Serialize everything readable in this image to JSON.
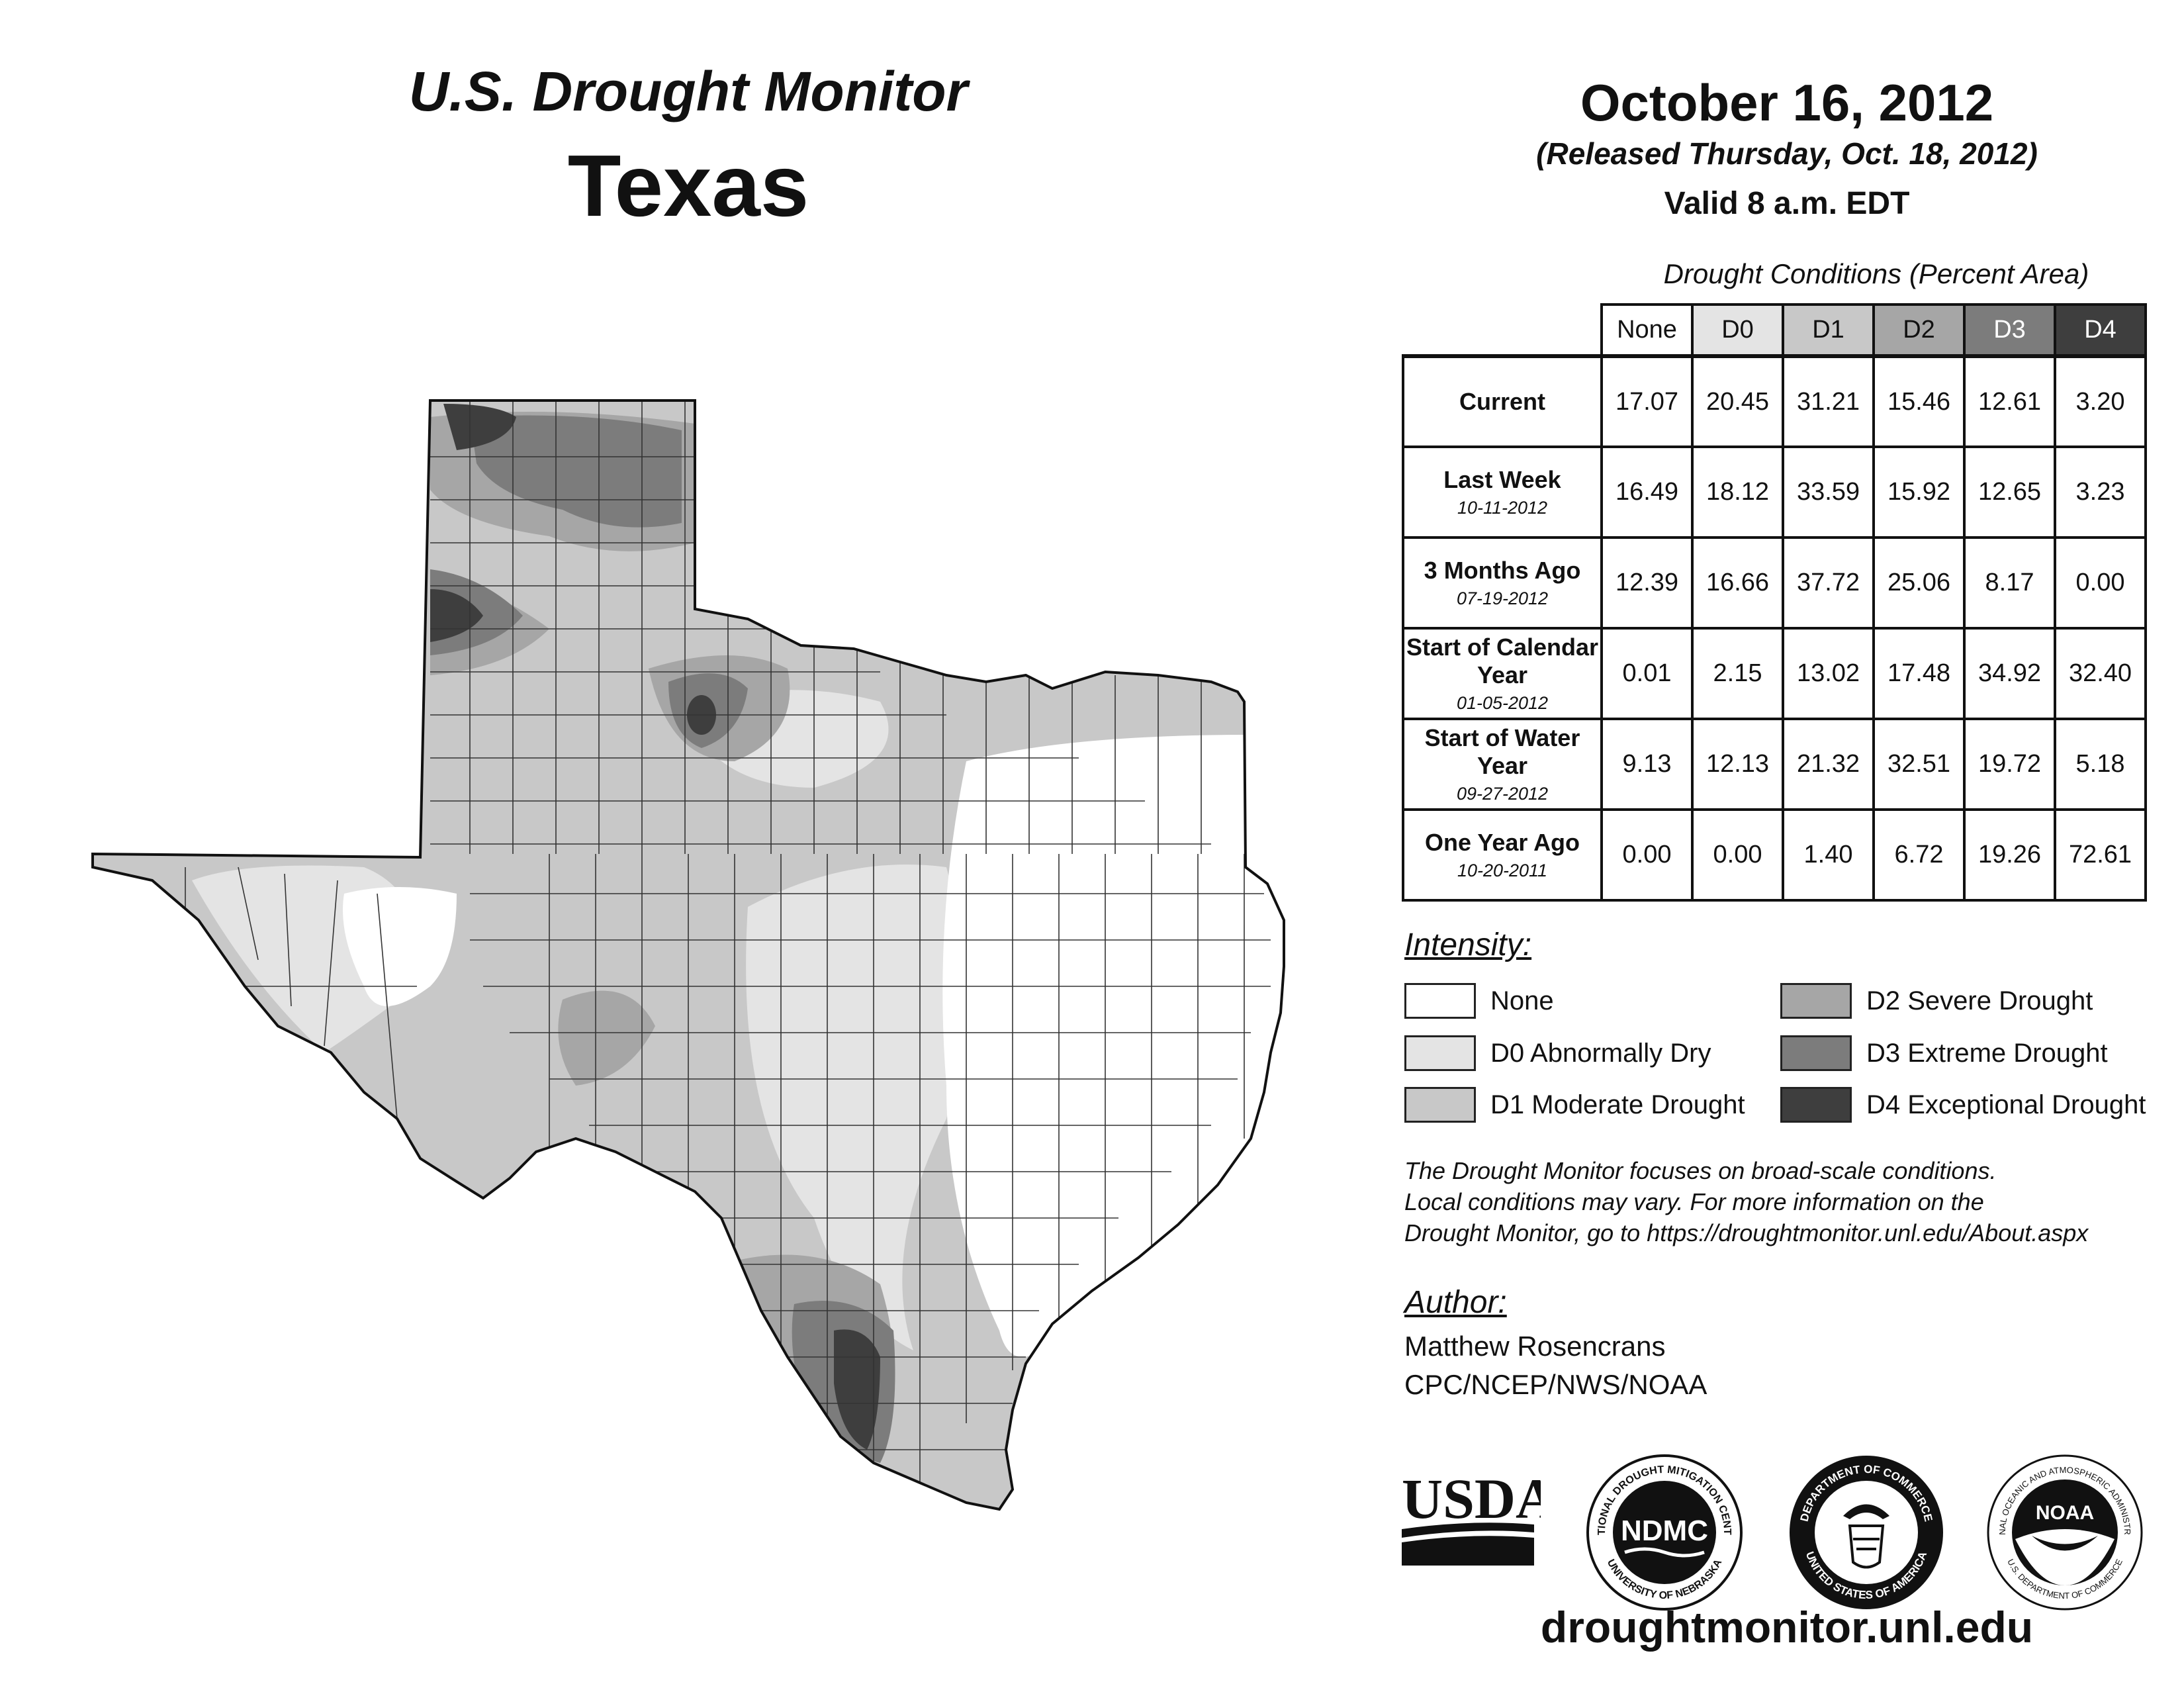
{
  "header": {
    "monitor_title": "U.S. Drought Monitor",
    "state": "Texas",
    "date": "October 16, 2012",
    "released": "(Released Thursday, Oct. 18, 2012)",
    "valid": "Valid 8 a.m. EDT"
  },
  "table": {
    "caption": "Drought Conditions (Percent Area)",
    "columns": [
      "None",
      "D0",
      "D1",
      "D2",
      "D3",
      "D4"
    ],
    "rows": [
      {
        "label": "Current",
        "sub": "",
        "values": [
          "17.07",
          "20.45",
          "31.21",
          "15.46",
          "12.61",
          "3.20"
        ]
      },
      {
        "label": "Last Week",
        "sub": "10-11-2012",
        "values": [
          "16.49",
          "18.12",
          "33.59",
          "15.92",
          "12.65",
          "3.23"
        ]
      },
      {
        "label": "3 Months Ago",
        "sub": "07-19-2012",
        "values": [
          "12.39",
          "16.66",
          "37.72",
          "25.06",
          "8.17",
          "0.00"
        ]
      },
      {
        "label": "Start of Calendar Year",
        "sub": "01-05-2012",
        "values": [
          "0.01",
          "2.15",
          "13.02",
          "17.48",
          "34.92",
          "32.40"
        ]
      },
      {
        "label": "Start of Water Year",
        "sub": "09-27-2012",
        "values": [
          "9.13",
          "12.13",
          "21.32",
          "32.51",
          "19.72",
          "5.18"
        ]
      },
      {
        "label": "One Year Ago",
        "sub": "10-20-2011",
        "values": [
          "0.00",
          "0.00",
          "1.40",
          "6.72",
          "19.26",
          "72.61"
        ]
      }
    ]
  },
  "legend": {
    "heading": "Intensity:",
    "items": [
      {
        "label": "None",
        "color": "#ffffff"
      },
      {
        "label": "D0 Abnormally Dry",
        "color": "#e4e4e4"
      },
      {
        "label": "D1 Moderate Drought",
        "color": "#c8c8c8"
      },
      {
        "label": "D2 Severe Drought",
        "color": "#a6a6a6"
      },
      {
        "label": "D3 Extreme Drought",
        "color": "#7c7c7c"
      },
      {
        "label": "D4 Exceptional Drought",
        "color": "#3e3e3e"
      }
    ]
  },
  "note": {
    "line1": "The Drought Monitor focuses on broad-scale conditions.",
    "line2": "Local conditions may vary. For more information on the",
    "line3": "Drought Monitor, go to https://droughtmonitor.unl.edu/About.aspx"
  },
  "author": {
    "heading": "Author:",
    "name": "Matthew Rosencrans",
    "org": "CPC/NCEP/NWS/NOAA"
  },
  "logos": {
    "usda": "USDA",
    "ndmc": "NDMC",
    "ndmc_ring_top": "NATIONAL DROUGHT MITIGATION CENTER",
    "ndmc_ring_bottom": "UNIVERSITY OF NEBRASKA",
    "commerce_ring_top": "DEPARTMENT OF COMMERCE",
    "commerce_ring_bottom": "UNITED STATES OF AMERICA",
    "noaa": "NOAA",
    "noaa_ring_top": "NATIONAL OCEANIC AND ATMOSPHERIC ADMINISTRATION",
    "noaa_ring_bottom": "U.S. DEPARTMENT OF COMMERCE"
  },
  "url": "droughtmonitor.unl.edu"
}
